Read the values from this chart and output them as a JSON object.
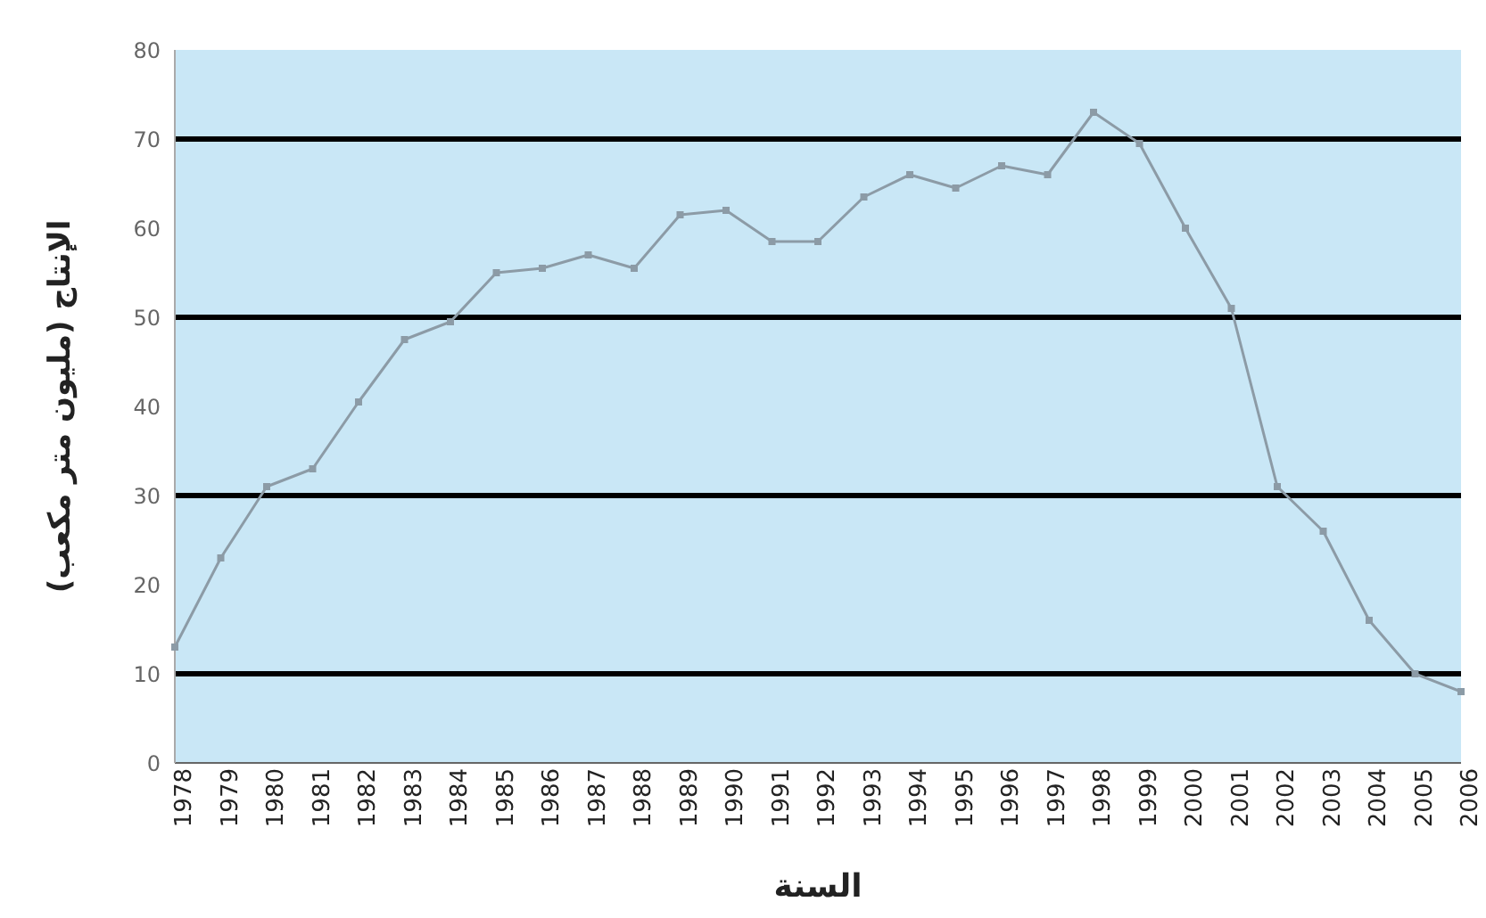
{
  "chart_data": {
    "type": "line",
    "xlabel": "السنة",
    "ylabel": "الإنتاج (مليون متر مكعب)",
    "categories": [
      "1978",
      "1979",
      "1980",
      "1981",
      "1982",
      "1983",
      "1984",
      "1985",
      "1986",
      "1987",
      "1988",
      "1989",
      "1990",
      "1991",
      "1992",
      "1993",
      "1994",
      "1995",
      "1996",
      "1997",
      "1998",
      "1999",
      "2000",
      "2001",
      "2002",
      "2003",
      "2004",
      "2005",
      "2006"
    ],
    "series": [
      {
        "color": "#8c9ba6",
        "values": [
          13,
          23,
          31,
          33,
          40.5,
          47.5,
          49.5,
          55,
          55.5,
          57,
          55.5,
          61.5,
          62,
          58.5,
          58.5,
          63.5,
          66,
          64.5,
          67,
          66,
          73,
          69.5,
          60,
          51,
          31,
          26,
          16,
          10,
          8
        ]
      }
    ],
    "ylim": [
      0,
      80
    ],
    "yticks": [
      0,
      10,
      20,
      30,
      40,
      50,
      60,
      70,
      80
    ],
    "ref_lines": [
      {
        "axis": "y",
        "value": 10,
        "color": "#000000"
      },
      {
        "axis": "y",
        "value": 30,
        "color": "#000000"
      },
      {
        "axis": "y",
        "value": 50,
        "color": "#000000"
      },
      {
        "axis": "y",
        "value": 70,
        "color": "#000000"
      }
    ],
    "grid": false,
    "legend": false,
    "marker": "square",
    "line_style": "solid"
  }
}
